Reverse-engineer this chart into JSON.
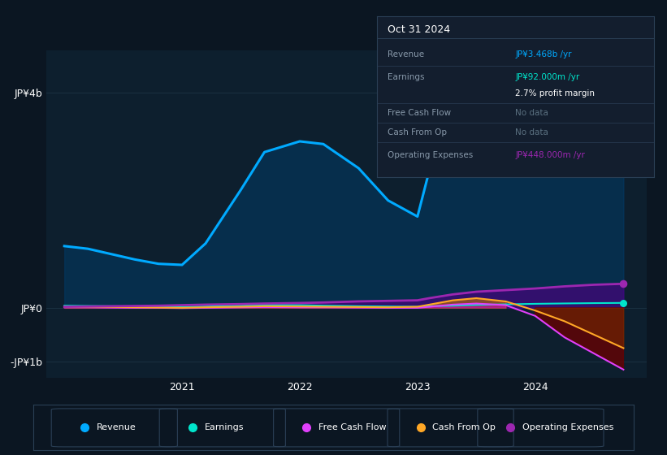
{
  "bg_color": "#0b1622",
  "plot_bg_color": "#0d1f2e",
  "grid_color": "#1a3040",
  "ylim": [
    -1300000000.0,
    4800000000.0
  ],
  "ytick_positions": [
    -1000000000.0,
    0,
    4000000000.0
  ],
  "ytick_labels": [
    "-JP¥1b",
    "JP¥0",
    "JP¥4b"
  ],
  "title": "Oct 31 2024",
  "revenue_color": "#00aaff",
  "earnings_color": "#00e5cc",
  "fcf_color": "#e040fb",
  "cashfromop_color": "#ffa726",
  "opex_color": "#9c27b0",
  "legend_items": [
    {
      "label": "Revenue",
      "color": "#00aaff"
    },
    {
      "label": "Earnings",
      "color": "#00e5cc"
    },
    {
      "label": "Free Cash Flow",
      "color": "#e040fb"
    },
    {
      "label": "Cash From Op",
      "color": "#ffa726"
    },
    {
      "label": "Operating Expenses",
      "color": "#9c27b0"
    }
  ],
  "x_years": [
    2020.0,
    2020.2,
    2020.4,
    2020.6,
    2020.8,
    2021.0,
    2021.2,
    2021.5,
    2021.7,
    2022.0,
    2022.2,
    2022.5,
    2022.75,
    2023.0,
    2023.1,
    2023.3,
    2023.5,
    2023.75,
    2024.0,
    2024.25,
    2024.5,
    2024.75
  ],
  "revenue": [
    1150000000.0,
    1100000000.0,
    1000000000.0,
    900000000.0,
    820000000.0,
    800000000.0,
    1200000000.0,
    2200000000.0,
    2900000000.0,
    3100000000.0,
    3050000000.0,
    2600000000.0,
    2000000000.0,
    1700000000.0,
    2550000000.0,
    2650000000.0,
    2720000000.0,
    2820000000.0,
    3000000000.0,
    3200000000.0,
    3380000000.0,
    3468000000.0
  ],
  "earnings": [
    40000000.0,
    35000000.0,
    30000000.0,
    25000000.0,
    20000000.0,
    15000000.0,
    25000000.0,
    40000000.0,
    55000000.0,
    50000000.0,
    40000000.0,
    30000000.0,
    25000000.0,
    20000000.0,
    30000000.0,
    40000000.0,
    55000000.0,
    65000000.0,
    75000000.0,
    82000000.0,
    88000000.0,
    92000000.0
  ],
  "fcf": [
    10000000.0,
    10000000.0,
    5000000.0,
    0.0,
    0.0,
    -5000000.0,
    0.0,
    10000000.0,
    15000000.0,
    10000000.0,
    10000000.0,
    5000000.0,
    0.0,
    0.0,
    20000000.0,
    60000000.0,
    80000000.0,
    50000000.0,
    -150000000.0,
    -550000000.0,
    -850000000.0,
    -1150000000.0
  ],
  "cashfromop": [
    20000000.0,
    20000000.0,
    15000000.0,
    10000000.0,
    5000000.0,
    0.0,
    10000000.0,
    20000000.0,
    30000000.0,
    25000000.0,
    20000000.0,
    15000000.0,
    10000000.0,
    20000000.0,
    60000000.0,
    140000000.0,
    180000000.0,
    120000000.0,
    -50000000.0,
    -250000000.0,
    -500000000.0,
    -750000000.0
  ],
  "opex": [
    20000000.0,
    25000000.0,
    30000000.0,
    35000000.0,
    40000000.0,
    50000000.0,
    60000000.0,
    70000000.0,
    80000000.0,
    90000000.0,
    100000000.0,
    120000000.0,
    130000000.0,
    140000000.0,
    180000000.0,
    250000000.0,
    300000000.0,
    330000000.0,
    360000000.0,
    400000000.0,
    430000000.0,
    448000000.0
  ],
  "xlim": [
    2019.85,
    2024.95
  ],
  "xticks": [
    2021,
    2022,
    2023,
    2024
  ],
  "xtick_labels": [
    "2021",
    "2022",
    "2023",
    "2024"
  ]
}
